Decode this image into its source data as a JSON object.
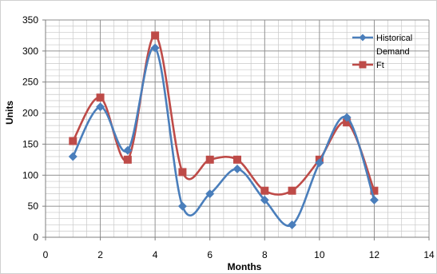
{
  "chart_data": {
    "type": "line",
    "xlabel": "Months",
    "ylabel": "Units",
    "xlim": [
      0,
      14
    ],
    "ylim": [
      0,
      350
    ],
    "x_ticks": [
      0,
      2,
      4,
      6,
      8,
      10,
      12,
      14
    ],
    "y_ticks": [
      0,
      50,
      100,
      150,
      200,
      250,
      300,
      350
    ],
    "grid": true,
    "smooth": true,
    "legend_position": "top-right",
    "series": [
      {
        "name": "Historical Demand",
        "legend_lines": [
          "Historical",
          "Demand"
        ],
        "color": "#4a7ebb",
        "marker": "diamond",
        "x": [
          1,
          2,
          3,
          4,
          5,
          6,
          7,
          8,
          9,
          10,
          11,
          12
        ],
        "values": [
          130,
          210,
          140,
          305,
          50,
          70,
          110,
          60,
          20,
          120,
          193,
          60
        ]
      },
      {
        "name": "Ft",
        "legend_lines": [
          "Ft"
        ],
        "color": "#be4b48",
        "marker": "square",
        "x": [
          1,
          2,
          3,
          4,
          5,
          6,
          7,
          8,
          9,
          10,
          11,
          12
        ],
        "values": [
          155,
          225,
          125,
          325,
          105,
          125,
          125,
          75,
          75,
          125,
          185,
          75
        ]
      }
    ]
  }
}
